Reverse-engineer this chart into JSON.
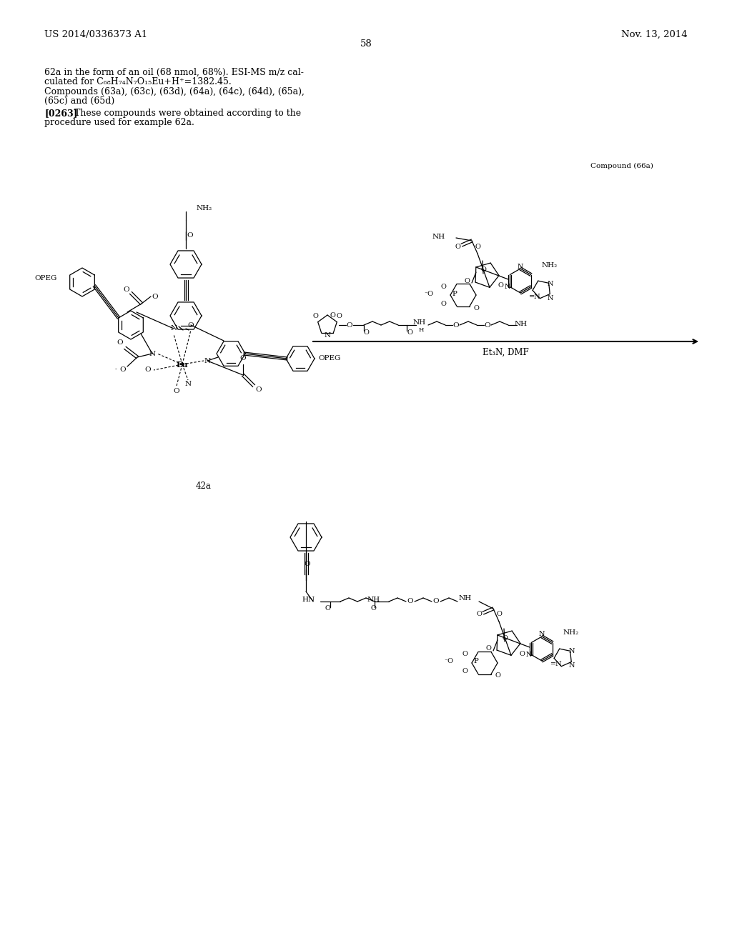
{
  "page_header_left": "US 2014/0336373 A1",
  "page_header_right": "Nov. 13, 2014",
  "page_number": "58",
  "text_line1": "62a in the form of an oil (68 nmol, 68%). ESI-MS m/z cal-",
  "text_line2": "culated for C₆₈H₇₄N₇O₁₅Eu+H⁺=1382.45.",
  "text_line3": "Compounds (63a), (63c), (63d), (64a), (64c), (64d), (65a),",
  "text_line4": "(65c) and (65d)",
  "text_bold": "[0263]",
  "text_line5": "These compounds were obtained according to the",
  "text_line6": "procedure used for example 62a.",
  "compound_label_top_right": "Compound (66a)",
  "compound_label_42a": "42a",
  "reagent_label": "Et₃N, DMF",
  "background_color": "#ffffff",
  "text_color": "#000000",
  "font_size_header": 9.5,
  "font_size_body": 9.0
}
